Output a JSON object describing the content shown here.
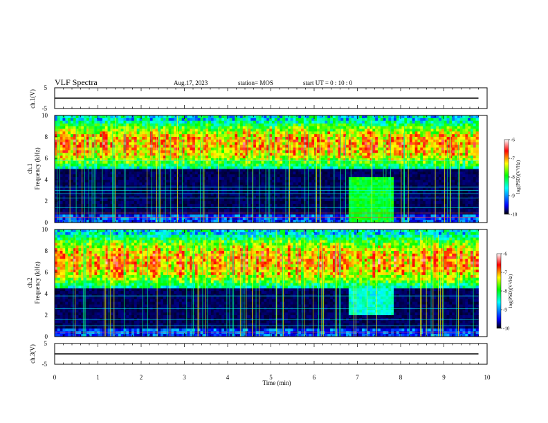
{
  "header": {
    "title": "VLF Spectra",
    "date": "Aug.17, 2023",
    "station": "station= MOS",
    "start": "start  UT =   0 : 10 : 0"
  },
  "colors": {
    "spectrogram_ramp": [
      "#000000",
      "#0000ff",
      "#00ffff",
      "#00ff00",
      "#ffff00",
      "#ff0000",
      "#ffffff"
    ]
  },
  "chart_data": [
    {
      "type": "line",
      "panel": "ch1-waveform",
      "ylabel": "ch.1(V)",
      "ylim": [
        -5,
        5
      ],
      "yticks": [
        "5",
        "-5"
      ],
      "xlim": [
        0,
        10
      ],
      "series": [
        {
          "x": [
            0,
            9.8
          ],
          "values": [
            0,
            0
          ]
        }
      ]
    },
    {
      "type": "heatmap",
      "panel": "ch1-spectrogram",
      "ylabel": "ch.1\nFrequency (kHz)",
      "ylim": [
        0,
        10
      ],
      "yticks": [
        "0",
        "2",
        "4",
        "6",
        "8",
        "10"
      ],
      "xlim": [
        0,
        10
      ],
      "data_extent_min": [
        0,
        9.8
      ],
      "colorbar": {
        "label": "log(PSD)(V²/Hz)",
        "range": [
          -10,
          -6
        ],
        "ticks": [
          "-6",
          "-7",
          "-8",
          "-9",
          "-10"
        ]
      },
      "features": {
        "band_kHz": [
          5,
          9.5
        ],
        "burst_min": [
          6.8,
          7.85
        ],
        "burst_kHz": [
          0,
          4.2
        ]
      }
    },
    {
      "type": "heatmap",
      "panel": "ch2-spectrogram",
      "ylabel": "ch.2\nFrequency (kHz)",
      "ylim": [
        0,
        10
      ],
      "yticks": [
        "0",
        "2",
        "4",
        "6",
        "8",
        "10"
      ],
      "xlim": [
        0,
        10
      ],
      "data_extent_min": [
        0,
        9.8
      ],
      "colorbar": {
        "label": "log(PSD)(V²/Hz)",
        "range": [
          -10,
          -6
        ],
        "ticks": [
          "-6",
          "-7",
          "-8",
          "-9",
          "-10"
        ]
      },
      "features": {
        "band_kHz": [
          4.5,
          9.5
        ],
        "burst_min": [
          6.8,
          7.85
        ],
        "burst_kHz": [
          2,
          5
        ]
      }
    },
    {
      "type": "line",
      "panel": "ch3-waveform",
      "ylabel": "ch.3(V)",
      "ylim": [
        -5,
        5
      ],
      "yticks": [
        "5",
        "-5"
      ],
      "xlim": [
        0,
        10
      ],
      "xlabel": "Time  (min)",
      "xticks": [
        "0",
        "1",
        "2",
        "3",
        "4",
        "5",
        "6",
        "7",
        "8",
        "9",
        "10"
      ],
      "series": [
        {
          "x": [
            0,
            9.8
          ],
          "values": [
            0,
            0
          ]
        }
      ]
    }
  ]
}
